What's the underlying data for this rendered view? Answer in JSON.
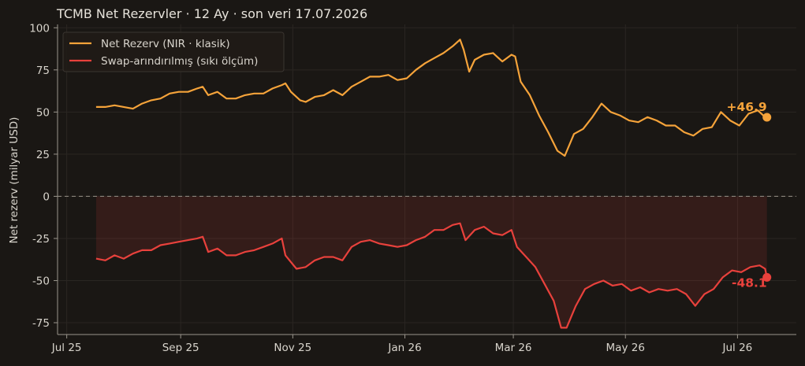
{
  "chart_data": {
    "type": "line",
    "title": "TCMB Net Rezervler · 12 Ay · son veri 17.07.2026",
    "ylabel": "Net rezerv (milyar USD)",
    "xlabel": "",
    "ylim": [
      -82,
      102
    ],
    "xlim": [
      "2025-06-26",
      "2026-08-02"
    ],
    "x_ticks": [
      {
        "date": "2025-07-01",
        "label": "Jul 25"
      },
      {
        "date": "2025-09-01",
        "label": "Sep 25"
      },
      {
        "date": "2025-11-01",
        "label": "Nov 25"
      },
      {
        "date": "2026-01-01",
        "label": "Jan 26"
      },
      {
        "date": "2026-03-01",
        "label": "Mar 26"
      },
      {
        "date": "2026-05-01",
        "label": "May 26"
      },
      {
        "date": "2026-07-01",
        "label": "Jul 26"
      }
    ],
    "y_ticks": [
      -75,
      -50,
      -25,
      0,
      25,
      50,
      75,
      100
    ],
    "grid": true,
    "legend_position": "top-left",
    "reference_line": 0,
    "series": [
      {
        "name": "Net Rezerv (NIR · klasik)",
        "color": "#f5a33a",
        "end_label": "+46.9",
        "points": [
          [
            "2025-07-17",
            53
          ],
          [
            "2025-07-22",
            53
          ],
          [
            "2025-07-27",
            54
          ],
          [
            "2025-08-01",
            53
          ],
          [
            "2025-08-06",
            52
          ],
          [
            "2025-08-11",
            55
          ],
          [
            "2025-08-16",
            57
          ],
          [
            "2025-08-21",
            58
          ],
          [
            "2025-08-26",
            61
          ],
          [
            "2025-08-31",
            62
          ],
          [
            "2025-09-05",
            62
          ],
          [
            "2025-09-10",
            64
          ],
          [
            "2025-09-13",
            65
          ],
          [
            "2025-09-16",
            60
          ],
          [
            "2025-09-21",
            62
          ],
          [
            "2025-09-26",
            58
          ],
          [
            "2025-10-01",
            58
          ],
          [
            "2025-10-06",
            60
          ],
          [
            "2025-10-11",
            61
          ],
          [
            "2025-10-16",
            61
          ],
          [
            "2025-10-21",
            64
          ],
          [
            "2025-10-26",
            66
          ],
          [
            "2025-10-28",
            67
          ],
          [
            "2025-10-31",
            62
          ],
          [
            "2025-11-05",
            57
          ],
          [
            "2025-11-08",
            56
          ],
          [
            "2025-11-13",
            59
          ],
          [
            "2025-11-18",
            60
          ],
          [
            "2025-11-23",
            63
          ],
          [
            "2025-11-28",
            60
          ],
          [
            "2025-12-03",
            65
          ],
          [
            "2025-12-08",
            68
          ],
          [
            "2025-12-13",
            71
          ],
          [
            "2025-12-18",
            71
          ],
          [
            "2025-12-23",
            72
          ],
          [
            "2025-12-28",
            69
          ],
          [
            "2026-01-02",
            70
          ],
          [
            "2026-01-07",
            75
          ],
          [
            "2026-01-12",
            79
          ],
          [
            "2026-01-17",
            82
          ],
          [
            "2026-01-22",
            85
          ],
          [
            "2026-01-27",
            89
          ],
          [
            "2026-01-31",
            93
          ],
          [
            "2026-02-02",
            87
          ],
          [
            "2026-02-05",
            74
          ],
          [
            "2026-02-08",
            81
          ],
          [
            "2026-02-13",
            84
          ],
          [
            "2026-02-18",
            85
          ],
          [
            "2026-02-23",
            80
          ],
          [
            "2026-02-28",
            84
          ],
          [
            "2026-03-02",
            83
          ],
          [
            "2026-03-05",
            68
          ],
          [
            "2026-03-10",
            60
          ],
          [
            "2026-03-15",
            48
          ],
          [
            "2026-03-20",
            38
          ],
          [
            "2026-03-25",
            27
          ],
          [
            "2026-03-29",
            24
          ],
          [
            "2026-04-03",
            37
          ],
          [
            "2026-04-08",
            40
          ],
          [
            "2026-04-13",
            47
          ],
          [
            "2026-04-18",
            55
          ],
          [
            "2026-04-23",
            50
          ],
          [
            "2026-04-28",
            48
          ],
          [
            "2026-05-03",
            45
          ],
          [
            "2026-05-08",
            44
          ],
          [
            "2026-05-13",
            47
          ],
          [
            "2026-05-18",
            45
          ],
          [
            "2026-05-23",
            42
          ],
          [
            "2026-05-28",
            42
          ],
          [
            "2026-06-02",
            38
          ],
          [
            "2026-06-07",
            36
          ],
          [
            "2026-06-12",
            40
          ],
          [
            "2026-06-17",
            41
          ],
          [
            "2026-06-22",
            50
          ],
          [
            "2026-06-27",
            45
          ],
          [
            "2026-07-02",
            42
          ],
          [
            "2026-07-07",
            49
          ],
          [
            "2026-07-12",
            51
          ],
          [
            "2026-07-15",
            48
          ],
          [
            "2026-07-17",
            46.9
          ]
        ]
      },
      {
        "name": "Swap-arındırılmış (sıkı ölçüm)",
        "color": "#e8413c",
        "end_label": "-48.1",
        "points": [
          [
            "2025-07-17",
            -37
          ],
          [
            "2025-07-22",
            -38
          ],
          [
            "2025-07-27",
            -35
          ],
          [
            "2025-08-01",
            -37
          ],
          [
            "2025-08-06",
            -34
          ],
          [
            "2025-08-11",
            -32
          ],
          [
            "2025-08-16",
            -32
          ],
          [
            "2025-08-21",
            -29
          ],
          [
            "2025-08-26",
            -28
          ],
          [
            "2025-08-31",
            -27
          ],
          [
            "2025-09-05",
            -26
          ],
          [
            "2025-09-10",
            -25
          ],
          [
            "2025-09-13",
            -24
          ],
          [
            "2025-09-16",
            -33
          ],
          [
            "2025-09-21",
            -31
          ],
          [
            "2025-09-26",
            -35
          ],
          [
            "2025-10-01",
            -35
          ],
          [
            "2025-10-06",
            -33
          ],
          [
            "2025-10-11",
            -32
          ],
          [
            "2025-10-16",
            -30
          ],
          [
            "2025-10-21",
            -28
          ],
          [
            "2025-10-26",
            -25
          ],
          [
            "2025-10-28",
            -35
          ],
          [
            "2025-11-03",
            -43
          ],
          [
            "2025-11-08",
            -42
          ],
          [
            "2025-11-13",
            -38
          ],
          [
            "2025-11-18",
            -36
          ],
          [
            "2025-11-23",
            -36
          ],
          [
            "2025-11-28",
            -38
          ],
          [
            "2025-12-03",
            -30
          ],
          [
            "2025-12-08",
            -27
          ],
          [
            "2025-12-13",
            -26
          ],
          [
            "2025-12-18",
            -28
          ],
          [
            "2025-12-23",
            -29
          ],
          [
            "2025-12-28",
            -30
          ],
          [
            "2026-01-02",
            -29
          ],
          [
            "2026-01-07",
            -26
          ],
          [
            "2026-01-12",
            -24
          ],
          [
            "2026-01-17",
            -20
          ],
          [
            "2026-01-22",
            -20
          ],
          [
            "2026-01-27",
            -17
          ],
          [
            "2026-01-31",
            -16
          ],
          [
            "2026-02-03",
            -26
          ],
          [
            "2026-02-08",
            -20
          ],
          [
            "2026-02-13",
            -18
          ],
          [
            "2026-02-18",
            -22
          ],
          [
            "2026-02-23",
            -23
          ],
          [
            "2026-02-28",
            -20
          ],
          [
            "2026-03-03",
            -30
          ],
          [
            "2026-03-08",
            -36
          ],
          [
            "2026-03-13",
            -42
          ],
          [
            "2026-03-18",
            -52
          ],
          [
            "2026-03-23",
            -62
          ],
          [
            "2026-03-27",
            -78
          ],
          [
            "2026-03-30",
            -78
          ],
          [
            "2026-04-04",
            -65
          ],
          [
            "2026-04-09",
            -55
          ],
          [
            "2026-04-14",
            -52
          ],
          [
            "2026-04-19",
            -50
          ],
          [
            "2026-04-24",
            -53
          ],
          [
            "2026-04-29",
            -52
          ],
          [
            "2026-05-04",
            -56
          ],
          [
            "2026-05-09",
            -54
          ],
          [
            "2026-05-14",
            -57
          ],
          [
            "2026-05-19",
            -55
          ],
          [
            "2026-05-24",
            -56
          ],
          [
            "2026-05-29",
            -55
          ],
          [
            "2026-06-03",
            -58
          ],
          [
            "2026-06-08",
            -65
          ],
          [
            "2026-06-13",
            -58
          ],
          [
            "2026-06-18",
            -55
          ],
          [
            "2026-06-23",
            -48
          ],
          [
            "2026-06-28",
            -44
          ],
          [
            "2026-07-03",
            -45
          ],
          [
            "2026-07-08",
            -42
          ],
          [
            "2026-07-13",
            -41
          ],
          [
            "2026-07-16",
            -43
          ],
          [
            "2026-07-17",
            -48.1
          ]
        ]
      }
    ]
  }
}
